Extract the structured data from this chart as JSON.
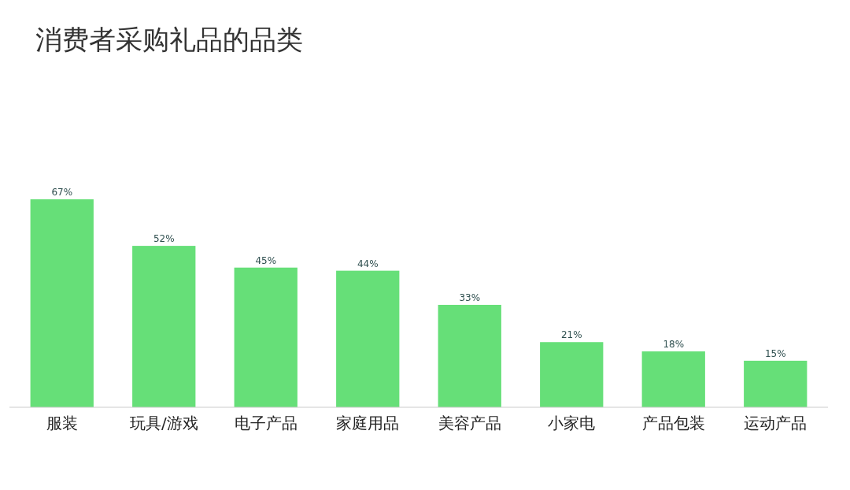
{
  "chart_data": {
    "type": "bar",
    "title": "消费者采购礼品的品类",
    "categories": [
      "服装",
      "玩具/游戏",
      "电子产品",
      "家庭用品",
      "美容产品",
      "小家电",
      "产品包装",
      "运动产品"
    ],
    "values": [
      67,
      52,
      45,
      44,
      33,
      21,
      18,
      15
    ],
    "value_labels": [
      "67%",
      "52%",
      "45%",
      "44%",
      "33%",
      "21%",
      "18%",
      "15%"
    ],
    "color": "#66df78"
  }
}
